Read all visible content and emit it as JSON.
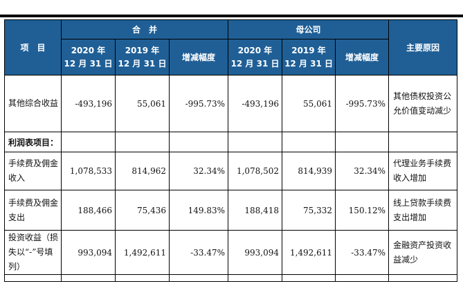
{
  "header": {
    "item": "项　目",
    "group_consolidated": "合　并",
    "group_parent": "母公司",
    "col_2020_line1": "2020 年",
    "col_2020_line2": "12 月 31 日",
    "col_2019_line1": "2019 年",
    "col_2019_line2": "12 月 31 日",
    "col_change": "增减幅度",
    "col_reason": "主要原因"
  },
  "rows": [
    {
      "label": "其他综合收益",
      "c2020": "-493,196",
      "c2019": "55,061",
      "cchg": "-995.73%",
      "p2020": "-493,196",
      "p2019": "55,061",
      "pchg": "-995.73%",
      "reason": "其他债权投资公允价值变动减少"
    },
    {
      "section": "利润表项目："
    },
    {
      "label": "手续费及佣金收入",
      "c2020": "1,078,533",
      "c2019": "814,962",
      "cchg": "32.34%",
      "p2020": "1,078,502",
      "p2019": "814,939",
      "pchg": "32.34%",
      "reason": "代理业务手续费收入增加"
    },
    {
      "label": "手续费及佣金支出",
      "c2020": "188,466",
      "c2019": "75,436",
      "cchg": "149.83%",
      "p2020": "188,418",
      "p2019": "75,332",
      "pchg": "150.12%",
      "reason": "线上贷款手续费支出增加"
    },
    {
      "label": "投资收益（损失以“-”号填列）",
      "c2020": "993,094",
      "c2019": "1,492,611",
      "cchg": "-33.47%",
      "p2020": "993,094",
      "p2019": "1,492,611",
      "pchg": "-33.47%",
      "reason": "金融资产投资收益减少"
    }
  ]
}
